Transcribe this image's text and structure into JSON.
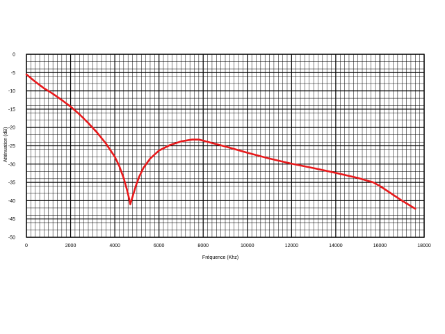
{
  "chart_data": {
    "type": "line",
    "title": "",
    "xlabel": "Fréquence (Khz)",
    "ylabel": "Atténuation (dB)",
    "xlim": [
      0,
      18000
    ],
    "ylim": [
      -50,
      0
    ],
    "x_ticks": [
      0,
      2000,
      4000,
      6000,
      8000,
      10000,
      12000,
      14000,
      16000,
      18000
    ],
    "y_ticks": [
      0,
      -5,
      -10,
      -15,
      -20,
      -25,
      -30,
      -35,
      -40,
      -45,
      -50
    ],
    "x_tick_labels": [
      "0",
      "2000",
      "4000",
      "6000",
      "8000",
      "10000",
      "12000",
      "14000",
      "16000",
      "18000"
    ],
    "y_tick_labels": [
      "0",
      "-5",
      "-10",
      "-15",
      "-20",
      "-25",
      "-30",
      "-35",
      "-40",
      "-45",
      "-50"
    ],
    "grid": true,
    "minor_grid": true,
    "series": [
      {
        "color": "#e8191b",
        "x": [
          0,
          400,
          800,
          1200,
          1600,
          2000,
          2400,
          2800,
          3200,
          3600,
          4000,
          4200,
          4400,
          4550,
          4650,
          4700,
          4800,
          4950,
          5100,
          5300,
          5600,
          6000,
          6500,
          7000,
          7500,
          7800,
          8000,
          8500,
          9000,
          10000,
          11000,
          12000,
          13000,
          14000,
          15000,
          15700,
          16000,
          16500,
          17000,
          17600
        ],
        "y": [
          -5.5,
          -7.5,
          -9.3,
          -10.8,
          -12.5,
          -14.3,
          -16.4,
          -18.8,
          -21.4,
          -24.4,
          -28.0,
          -30.5,
          -33.8,
          -37.0,
          -39.5,
          -41.0,
          -39.0,
          -36.0,
          -33.5,
          -31.0,
          -28.5,
          -26.3,
          -24.8,
          -23.8,
          -23.3,
          -23.3,
          -23.6,
          -24.4,
          -25.2,
          -26.9,
          -28.5,
          -29.9,
          -31.1,
          -32.4,
          -33.8,
          -35.0,
          -36.0,
          -38.0,
          -40.0,
          -42.2
        ]
      }
    ]
  }
}
